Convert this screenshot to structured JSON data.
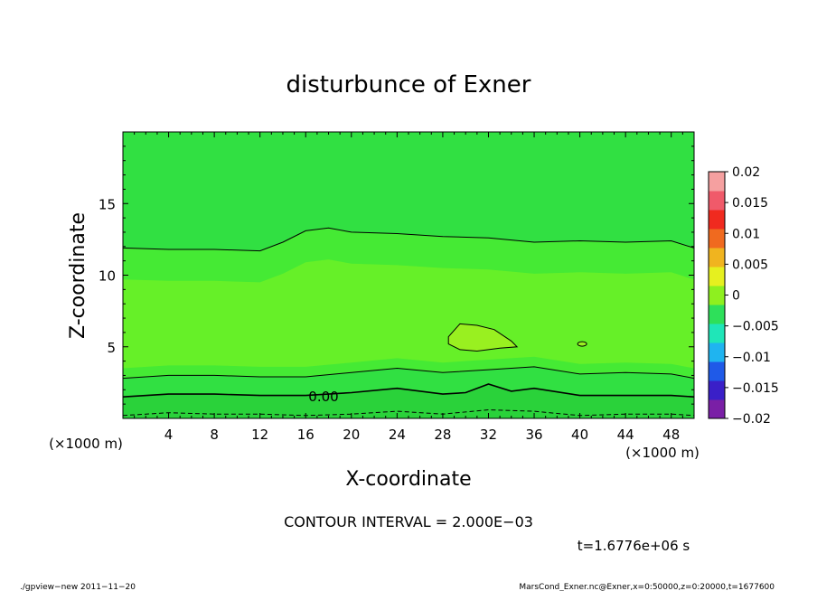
{
  "chart_data": {
    "type": "contour",
    "title": "disturbunce of Exner",
    "xlabel": "X-coordinate",
    "ylabel": "Z-coordinate",
    "x_unit_label": "(×1000 m)",
    "y_unit_label": "(×1000 m)",
    "xlim": [
      0,
      50
    ],
    "ylim": [
      0,
      20
    ],
    "x_ticks": [
      4,
      8,
      12,
      16,
      20,
      24,
      28,
      32,
      36,
      40,
      44,
      48
    ],
    "y_ticks": [
      5,
      10,
      15
    ],
    "colorbar": {
      "levels": [
        -0.02,
        -0.015,
        -0.01,
        -0.005,
        0,
        0.005,
        0.01,
        0.015,
        0.02
      ],
      "labels": [
        "0.02",
        "0.015",
        "0.01",
        "0.005",
        "0",
        "−0.005",
        "−0.01",
        "−0.015",
        "−0.02"
      ],
      "colors": [
        "#7a1fa6",
        "#3a1fc8",
        "#1f5ae8",
        "#1fb4f0",
        "#1fe6b8",
        "#2ee05a",
        "#8ef01f",
        "#e6f01f",
        "#f0b41f",
        "#f06a1f",
        "#f02a1f",
        "#f05a6a",
        "#f5a0a0"
      ]
    },
    "contour_interval_text": "CONTOUR INTERVAL = 2.000E−03",
    "contour_label": "0.00",
    "contours": [
      {
        "name": "upper",
        "x": [
          0,
          4,
          8,
          12,
          14,
          16,
          18,
          20,
          24,
          28,
          32,
          36,
          40,
          44,
          48,
          50
        ],
        "z": [
          11.9,
          11.8,
          11.8,
          11.7,
          12.3,
          13.1,
          13.3,
          13.0,
          12.9,
          12.7,
          12.6,
          12.3,
          12.4,
          12.3,
          12.4,
          11.9
        ]
      },
      {
        "name": "lower",
        "x": [
          0,
          4,
          8,
          12,
          16,
          20,
          24,
          28,
          32,
          36,
          40,
          44,
          48,
          50
        ],
        "z": [
          2.8,
          3.0,
          3.0,
          2.9,
          2.9,
          3.2,
          3.5,
          3.2,
          3.4,
          3.6,
          3.1,
          3.2,
          3.1,
          2.8
        ]
      },
      {
        "name": "zero",
        "x": [
          0,
          4,
          8,
          12,
          16,
          20,
          24,
          28,
          30,
          32,
          34,
          36,
          40,
          44,
          48,
          50
        ],
        "z": [
          1.5,
          1.7,
          1.7,
          1.6,
          1.6,
          1.8,
          2.1,
          1.7,
          1.8,
          2.4,
          1.9,
          2.1,
          1.6,
          1.6,
          1.6,
          1.5
        ]
      },
      {
        "name": "dashed",
        "x": [
          0,
          4,
          8,
          12,
          16,
          20,
          24,
          28,
          32,
          36,
          40,
          44,
          48,
          50
        ],
        "z": [
          0.2,
          0.4,
          0.3,
          0.3,
          0.2,
          0.3,
          0.5,
          0.3,
          0.6,
          0.5,
          0.2,
          0.3,
          0.3,
          0.2
        ]
      },
      {
        "name": "blob",
        "x": [
          28.5,
          29.5,
          31,
          32.5,
          34,
          34.5,
          33,
          31,
          29.5,
          28.5
        ],
        "z": [
          5.7,
          6.6,
          6.5,
          6.2,
          5.4,
          5.0,
          4.9,
          4.7,
          4.8,
          5.2
        ]
      }
    ]
  },
  "time_text": "t=1.6776e+06 s",
  "footer": {
    "left": "./gpview−new   2011−11−20",
    "right": "MarsCond_Exner.nc@Exner,x=0:50000,z=0:20000,t=1677600"
  }
}
